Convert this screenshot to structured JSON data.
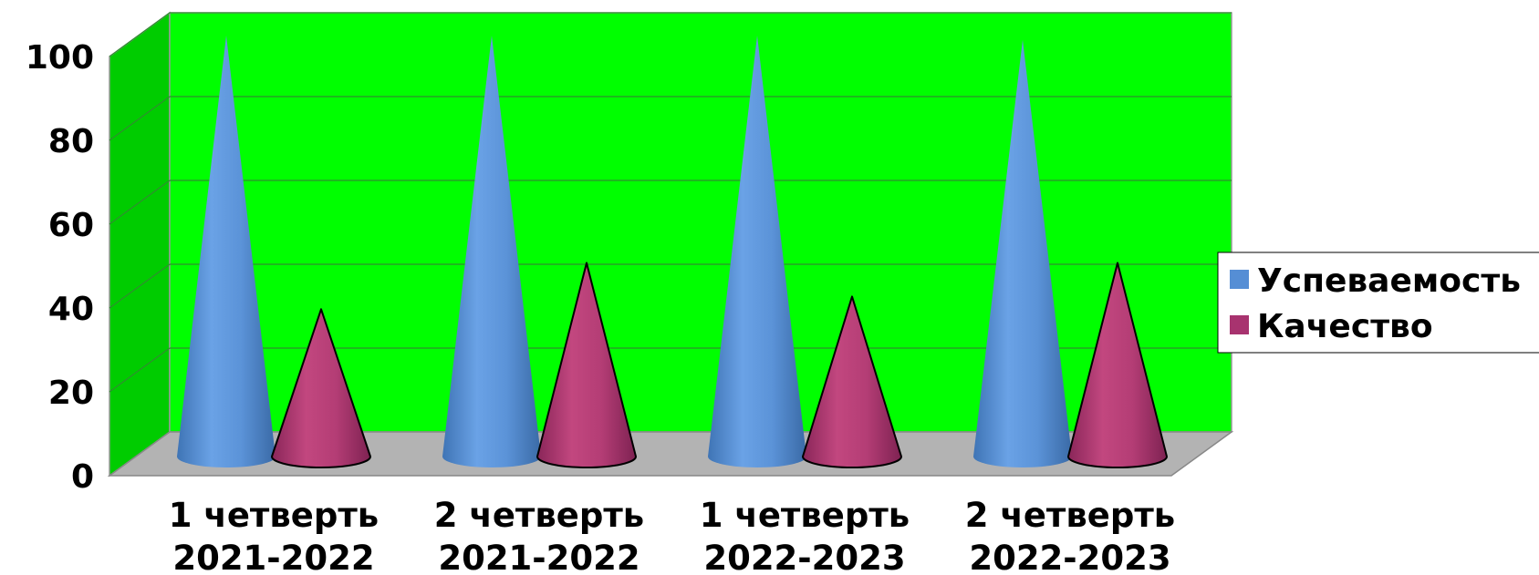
{
  "chart_data": {
    "type": "bar",
    "bar_shape": "cone-3d",
    "categories": [
      [
        "1 четверть",
        "2021-2022"
      ],
      [
        "2 четверть",
        "2021-2022"
      ],
      [
        "1 четверть",
        "2022-2023"
      ],
      [
        "2 четверть",
        "2022-2023"
      ]
    ],
    "series": [
      {
        "name": "Успеваемость",
        "color": "#558ED5",
        "values": [
          100,
          100,
          100,
          99
        ]
      },
      {
        "name": "Качество",
        "color": "#A8336F",
        "values": [
          35,
          46,
          38,
          46
        ]
      }
    ],
    "yticks": [
      "0",
      "20",
      "40",
      "60",
      "80",
      "100"
    ],
    "ylim": [
      0,
      100
    ],
    "grid": true,
    "legend": "right",
    "colors": {
      "back_wall": "#00FF00",
      "side_wall": "#00CC00",
      "floor": "#B3B3B3"
    }
  }
}
